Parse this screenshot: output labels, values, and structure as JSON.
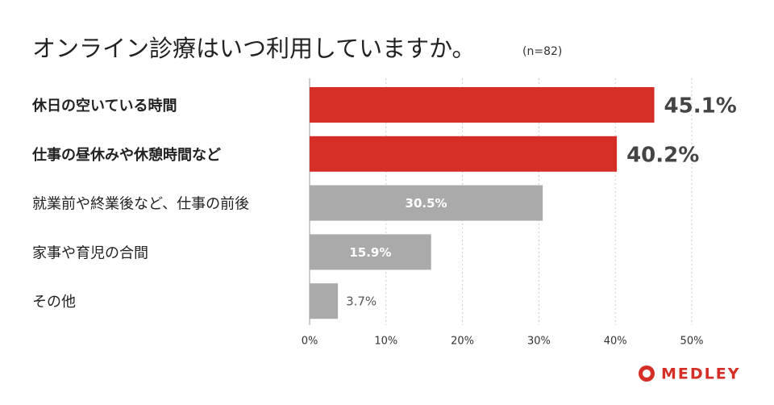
{
  "chart_data": {
    "type": "bar",
    "orientation": "horizontal",
    "title": "オンライン診療はいつ利用していますか。",
    "subtitle": "(n=82)",
    "categories": [
      "休日の空いている時間",
      "仕事の昼休みや休憩時間など",
      "就業前や終業後など、仕事の前後",
      "家事や育児の合間",
      "その他"
    ],
    "values": [
      45.1,
      40.2,
      30.5,
      15.9,
      3.7
    ],
    "value_labels": [
      "45.1%",
      "40.2%",
      "30.5%",
      "15.9%",
      "3.7%"
    ],
    "colors": [
      "#d42e26",
      "#d42e26",
      "#aaaaaa",
      "#aaaaaa",
      "#aaaaaa"
    ],
    "highlight": [
      0,
      1
    ],
    "xlim": [
      0,
      50
    ],
    "xticks": [
      {
        "value": 0,
        "label": "0%"
      },
      {
        "value": 10,
        "label": "10%"
      },
      {
        "value": 20,
        "label": "20%"
      },
      {
        "value": 30,
        "label": "30%"
      },
      {
        "value": 40,
        "label": "40%"
      },
      {
        "value": 50,
        "label": "50%"
      }
    ],
    "grid": true,
    "logo": "MEDLEY"
  }
}
